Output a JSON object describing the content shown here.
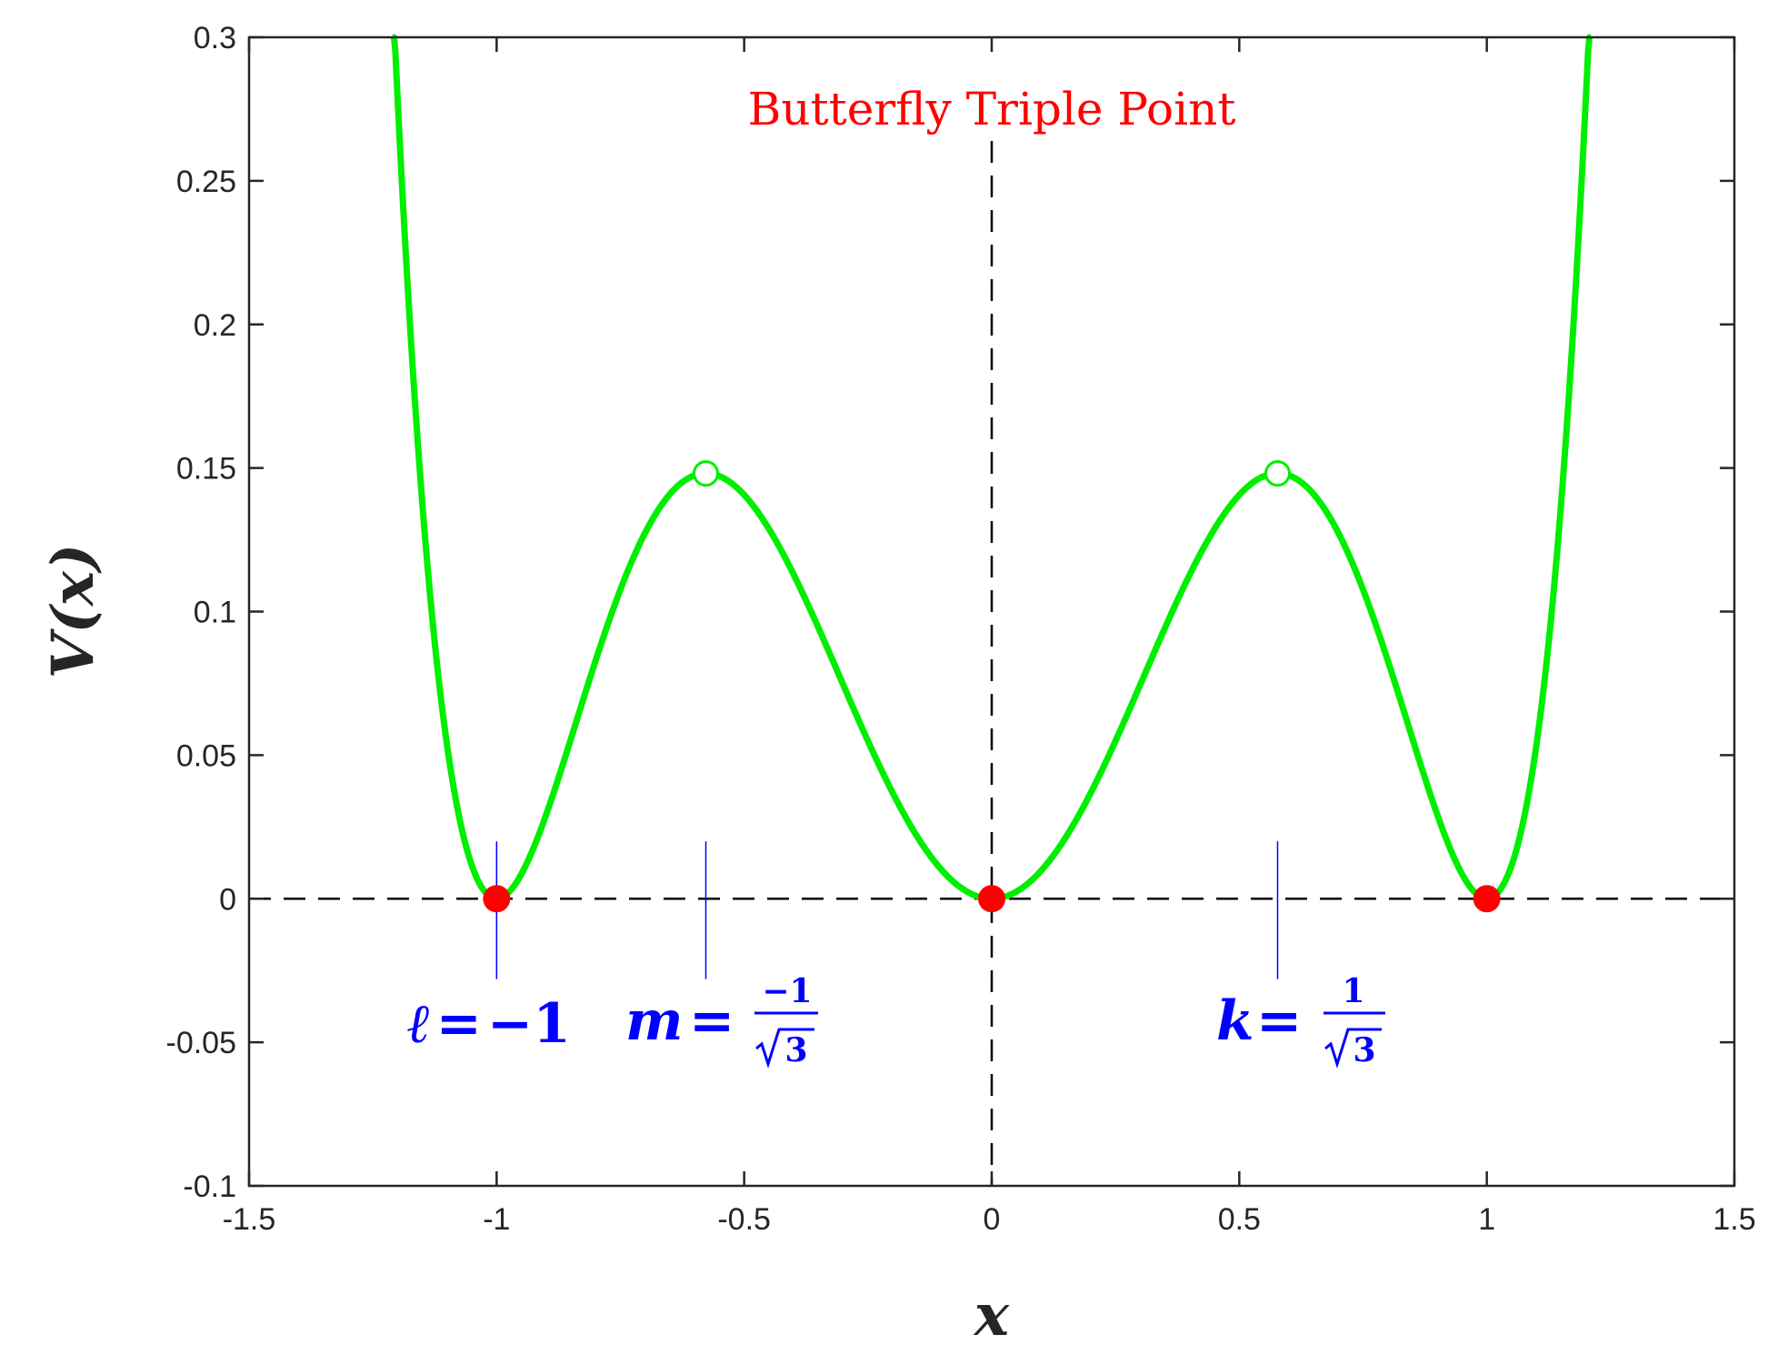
{
  "chart_data": {
    "type": "line",
    "title": "Butterfly Triple Point",
    "xlabel": "x",
    "ylabel": "V(x)",
    "xlim": [
      -1.5,
      1.5
    ],
    "ylim": [
      -0.1,
      0.3
    ],
    "xticks": [
      -1.5,
      -1,
      -0.5,
      0,
      0.5,
      1,
      1.5
    ],
    "xtick_labels": [
      "-1.5",
      "-1",
      "-0.5",
      "0",
      "0.5",
      "1",
      "1.5"
    ],
    "yticks": [
      -0.1,
      -0.05,
      0,
      0.05,
      0.1,
      0.15,
      0.2,
      0.25,
      0.3
    ],
    "ytick_labels": [
      "-0.1",
      "-0.05",
      "0",
      "0.05",
      "0.1",
      "0.15",
      "0.2",
      "0.25",
      "0.3"
    ],
    "grid": false,
    "curve": {
      "color": "#00ee00",
      "x_range": [
        -1.21,
        1.21
      ],
      "expression": "x^2 (x^2 - 1)^2"
    },
    "minima": {
      "color": "#ff0000",
      "points": [
        {
          "x": -1,
          "y": 0
        },
        {
          "x": 0,
          "y": 0
        },
        {
          "x": 1,
          "y": 0
        }
      ]
    },
    "maxima": {
      "color": "#00ee00",
      "points": [
        {
          "x": -0.5774,
          "y": 0.1481
        },
        {
          "x": 0.5774,
          "y": 0.1481
        }
      ]
    },
    "reference_lines": {
      "horizontal_y": 0,
      "vertical_x": 0,
      "color": "#000000",
      "style": "dashed"
    },
    "markers": {
      "color": "#0000ff",
      "y_range": [
        -0.028,
        0.02
      ],
      "x": [
        -1,
        -0.5774,
        0.5774
      ]
    },
    "annotations": {
      "l": {
        "var": "ℓ",
        "rhs": "−1"
      },
      "m": {
        "var": "m",
        "num": "−1",
        "den": "3"
      },
      "k": {
        "var": "k",
        "num": "1",
        "den": "3"
      }
    }
  }
}
